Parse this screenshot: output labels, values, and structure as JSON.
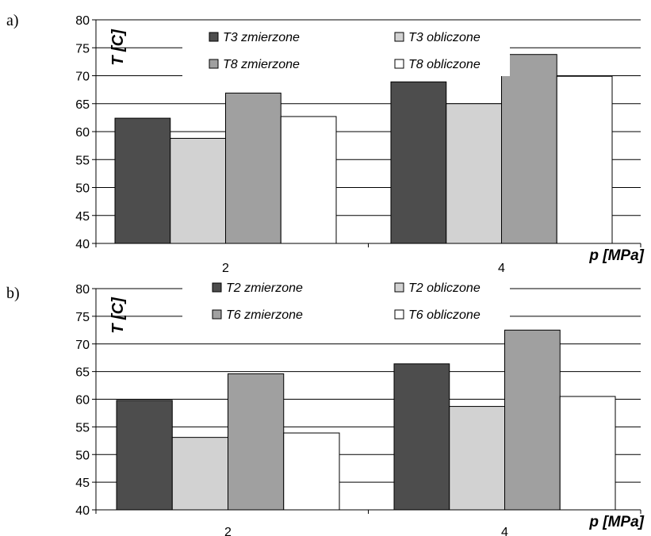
{
  "chart_data": [
    {
      "panel_label": "a)",
      "type": "bar",
      "categories": [
        "2",
        "4"
      ],
      "series": [
        {
          "name": "T3 zmierzone",
          "values": [
            62.4,
            68.9
          ],
          "color": "#4d4d4d"
        },
        {
          "name": "T3 obliczone",
          "values": [
            58.8,
            65.0
          ],
          "color": "#d2d2d2"
        },
        {
          "name": "T8 zmierzone",
          "values": [
            66.9,
            73.8
          ],
          "color": "#a0a0a0"
        },
        {
          "name": "T8 obliczone",
          "values": [
            62.7,
            69.9
          ],
          "color": "#ffffff"
        }
      ],
      "ylabel": "T [C]",
      "xlabel": "p [MPa]",
      "ylim": [
        40,
        80
      ],
      "yticks": [
        "40",
        "45",
        "50",
        "55",
        "60",
        "65",
        "70",
        "75",
        "80"
      ],
      "grid": true,
      "legend_position": "top"
    },
    {
      "panel_label": "b)",
      "type": "bar",
      "categories": [
        "2",
        "4"
      ],
      "series": [
        {
          "name": "T2 zmierzone",
          "values": [
            59.8,
            66.4
          ],
          "color": "#4d4d4d"
        },
        {
          "name": "T2 obliczone",
          "values": [
            53.1,
            58.7
          ],
          "color": "#d2d2d2"
        },
        {
          "name": "T6 zmierzone",
          "values": [
            64.6,
            72.5
          ],
          "color": "#a0a0a0"
        },
        {
          "name": "T6 obliczone",
          "values": [
            53.9,
            60.5
          ],
          "color": "#ffffff"
        }
      ],
      "ylabel": "T [C]",
      "xlabel": "p [MPa]",
      "ylim": [
        40,
        80
      ],
      "yticks": [
        "40",
        "45",
        "50",
        "55",
        "60",
        "65",
        "70",
        "75",
        "80"
      ],
      "grid": true,
      "legend_position": "top"
    }
  ]
}
